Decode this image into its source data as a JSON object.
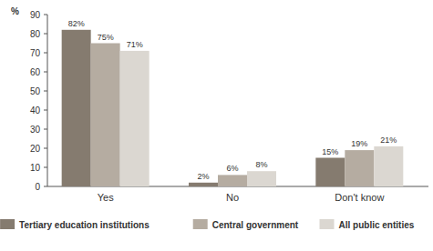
{
  "chart_data": {
    "type": "bar",
    "ylabel": "%",
    "categories": [
      "Yes",
      "No",
      "Don't know"
    ],
    "series": [
      {
        "name": "Tertiary education institutions",
        "color": "#857b6f",
        "values": [
          82,
          2,
          15
        ],
        "value_labels": [
          "82%",
          "2%",
          "15%"
        ]
      },
      {
        "name": "Central government",
        "color": "#b5aca1",
        "values": [
          75,
          6,
          19
        ],
        "value_labels": [
          "75%",
          "6%",
          "19%"
        ]
      },
      {
        "name": "All public entities",
        "color": "#dbd7d1",
        "values": [
          71,
          8,
          21
        ],
        "value_labels": [
          "71%",
          "8%",
          "21%"
        ]
      }
    ],
    "ylim": [
      0,
      90
    ],
    "yticks": [
      0,
      10,
      20,
      30,
      40,
      50,
      60,
      70,
      80,
      90
    ],
    "grid": false,
    "legend": "bottom",
    "data_labels": true
  }
}
